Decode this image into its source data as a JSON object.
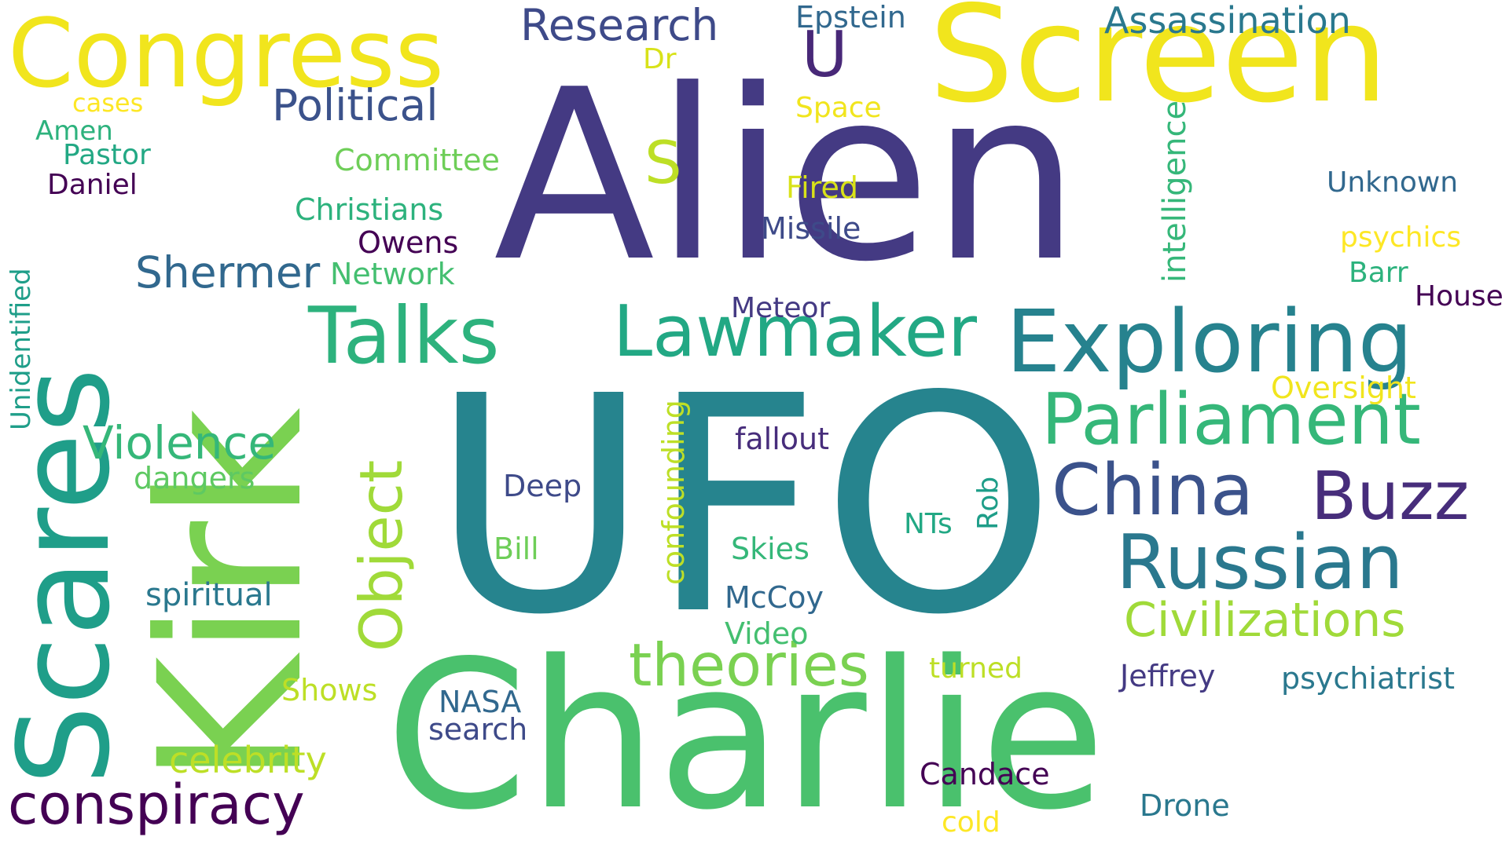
{
  "words": [
    {
      "text": "Alien",
      "color": "#443a83"
    },
    {
      "text": "UFO",
      "color": "#26848e"
    },
    {
      "text": "Charlie",
      "color": "#4ac16d"
    },
    {
      "text": "Kirk",
      "color": "#7ad151"
    },
    {
      "text": "Screen",
      "color": "#f1e51d"
    },
    {
      "text": "Scares",
      "color": "#1f9e89"
    },
    {
      "text": "Congress",
      "color": "#f1e51d"
    },
    {
      "text": "Exploring",
      "color": "#26828e"
    },
    {
      "text": "Talks",
      "color": "#2db27d"
    },
    {
      "text": "Lawmaker",
      "color": "#22a884"
    },
    {
      "text": "Parliament",
      "color": "#35b779"
    },
    {
      "text": "Russian",
      "color": "#2a788e"
    },
    {
      "text": "China",
      "color": "#3b528b"
    },
    {
      "text": "Buzz",
      "color": "#472d7b"
    },
    {
      "text": "Object",
      "color": "#a0da39"
    },
    {
      "text": "theories",
      "color": "#7ad151"
    },
    {
      "text": "conspiracy",
      "color": "#440154"
    },
    {
      "text": "Civilizations",
      "color": "#a0da39"
    },
    {
      "text": "Research",
      "color": "#3e4a89"
    },
    {
      "text": "Political",
      "color": "#3b528b"
    },
    {
      "text": "U",
      "color": "#482878"
    },
    {
      "text": "S",
      "color": "#bddf26"
    },
    {
      "text": "Violence",
      "color": "#35b779"
    },
    {
      "text": "Shermer",
      "color": "#31688e"
    },
    {
      "text": "Assassination",
      "color": "#2a788e"
    },
    {
      "text": "Epstein",
      "color": "#31688e"
    },
    {
      "text": "Dr",
      "color": "#d8e219"
    },
    {
      "text": "Space",
      "color": "#f1e51d"
    },
    {
      "text": "Committee",
      "color": "#6ece58"
    },
    {
      "text": "Christians",
      "color": "#2db27d"
    },
    {
      "text": "Network",
      "color": "#44bf70"
    },
    {
      "text": "Owens",
      "color": "#440154"
    },
    {
      "text": "Missile",
      "color": "#3e4a89"
    },
    {
      "text": "Fired",
      "color": "#d8e219"
    },
    {
      "text": "Meteor",
      "color": "#443a83"
    },
    {
      "text": "intelligence",
      "color": "#35b779"
    },
    {
      "text": "Unknown",
      "color": "#31688e"
    },
    {
      "text": "psychics",
      "color": "#fde725"
    },
    {
      "text": "Barr",
      "color": "#2db27d"
    },
    {
      "text": "House",
      "color": "#440154"
    },
    {
      "text": "Oversight",
      "color": "#f1e51d"
    },
    {
      "text": "cases",
      "color": "#fde725"
    },
    {
      "text": "Amen",
      "color": "#2db27d"
    },
    {
      "text": "Pastor",
      "color": "#22a884"
    },
    {
      "text": "Daniel",
      "color": "#440154"
    },
    {
      "text": "Unidentified",
      "color": "#1f9e89"
    },
    {
      "text": "dangers",
      "color": "#5ec962"
    },
    {
      "text": "spiritual",
      "color": "#2a788e"
    },
    {
      "text": "celebrity",
      "color": "#bddf26"
    },
    {
      "text": "Shows",
      "color": "#bddf26"
    },
    {
      "text": "NASA",
      "color": "#31688e"
    },
    {
      "text": "search",
      "color": "#3e4a89"
    },
    {
      "text": "Bill",
      "color": "#6ece58"
    },
    {
      "text": "Deep",
      "color": "#3e4a89"
    },
    {
      "text": "confounding",
      "color": "#bddf26"
    },
    {
      "text": "fallout",
      "color": "#472d7b"
    },
    {
      "text": "Skies",
      "color": "#35b779"
    },
    {
      "text": "McCoy",
      "color": "#31688e"
    },
    {
      "text": "Video",
      "color": "#44bf70"
    },
    {
      "text": "NTs",
      "color": "#22a884"
    },
    {
      "text": "Rob",
      "color": "#1f9e89"
    },
    {
      "text": "turned",
      "color": "#bddf26"
    },
    {
      "text": "Jeffrey",
      "color": "#443a83"
    },
    {
      "text": "psychiatrist",
      "color": "#2a788e"
    },
    {
      "text": "Candace",
      "color": "#440154"
    },
    {
      "text": "cold",
      "color": "#fde725"
    },
    {
      "text": "Drone",
      "color": "#2a788e"
    }
  ]
}
